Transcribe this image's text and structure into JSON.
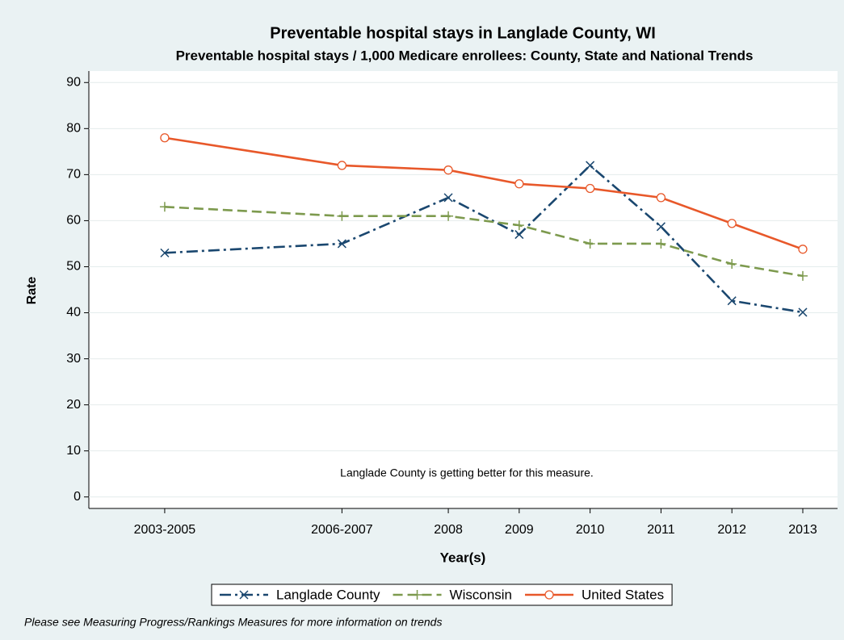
{
  "chart_data": {
    "type": "line",
    "title": "Preventable hospital stays in Langlade County, WI",
    "subtitle": "Preventable hospital stays / 1,000 Medicare enrollees: County, State and National Trends",
    "x_label": "Year(s)",
    "y_label": "Rate",
    "annotation": "Langlade County is getting better for this measure.",
    "footnote": "Please see Measuring Progress/Rankings Measures for more information on trends",
    "x": [
      2004,
      2006.5,
      2008,
      2009,
      2010,
      2011,
      2012,
      2013
    ],
    "xlim": [
      2002.93,
      2013.49
    ],
    "xticks": [
      {
        "value": 2004,
        "label": "2003-2005"
      },
      {
        "value": 2006.5,
        "label": "2006-2007"
      },
      2008,
      2009,
      2010,
      2011,
      2012,
      2013
    ],
    "ylim": [
      -2.5,
      92.5
    ],
    "yticks": [
      0,
      10,
      20,
      30,
      40,
      50,
      60,
      70,
      80,
      90
    ],
    "grid": true,
    "legend": "bottom",
    "series": [
      {
        "name": "Langlade County",
        "color": "#1a476f",
        "dash": "dash-dot",
        "marker": "x",
        "values": [
          53,
          55,
          65,
          57,
          72,
          58.7,
          42.6,
          40.1
        ]
      },
      {
        "name": "Wisconsin",
        "color": "#7d9a4e",
        "dash": "dash",
        "marker": "plus",
        "values": [
          63,
          61,
          61,
          59,
          55,
          55,
          50.6,
          48
        ]
      },
      {
        "name": "United States",
        "color": "#e8582a",
        "dash": "solid",
        "marker": "circle",
        "values": [
          78,
          72,
          71,
          68,
          67,
          65,
          59.4,
          53.8
        ]
      }
    ]
  }
}
